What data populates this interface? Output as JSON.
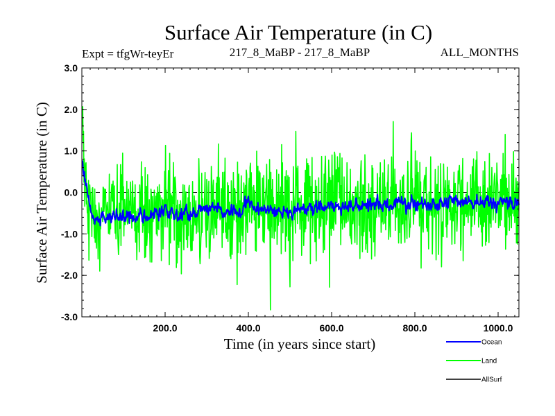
{
  "chart_data": {
    "type": "line",
    "title": "Surface Air Temperature (in C)",
    "experiment": "Expt = tfgWr-teyEr",
    "comparison": "217_8_MaBP - 217_8_MaBP",
    "months": "ALL_MONTHS",
    "xlabel": "Time (in years since start)",
    "ylabel": "Surface Air Temperature (in C)",
    "xlim": [
      0,
      1050
    ],
    "ylim": [
      -3.0,
      3.0
    ],
    "x_ticks": [
      200,
      400,
      600,
      800,
      1000
    ],
    "x_tick_labels": [
      "200.0",
      "400.0",
      "600.0",
      "800.0",
      "1000.0"
    ],
    "y_ticks": [
      3,
      2,
      1,
      0,
      -1,
      -2,
      -3
    ],
    "y_tick_labels": [
      "3.0",
      "2.0",
      "1.0",
      "0.0",
      "-1.0",
      "-2.0",
      "-3.0"
    ],
    "reference_line": 0.0,
    "legend_position": "bottom-right",
    "series": [
      {
        "name": "Ocean",
        "color": "#0000ff",
        "x": [
          0,
          5,
          10,
          15,
          20,
          30,
          50,
          100,
          150,
          200,
          250,
          300,
          350,
          400,
          450,
          500,
          550,
          600,
          650,
          700,
          750,
          800,
          850,
          900,
          950,
          1000,
          1050
        ],
        "values": [
          0.75,
          0.55,
          0.2,
          -0.2,
          -0.45,
          -0.7,
          -0.65,
          -0.55,
          -0.6,
          -0.45,
          -0.55,
          -0.4,
          -0.5,
          -0.35,
          -0.4,
          -0.45,
          -0.35,
          -0.35,
          -0.4,
          -0.3,
          -0.3,
          -0.25,
          -0.3,
          -0.2,
          -0.25,
          -0.2,
          -0.3
        ],
        "noise_amplitude": 0.45
      },
      {
        "name": "Land",
        "color": "#00ff00",
        "x": [
          0,
          5,
          10,
          15,
          20,
          30,
          50,
          100,
          150,
          200,
          250,
          300,
          350,
          400,
          450,
          500,
          550,
          600,
          650,
          700,
          750,
          800,
          850,
          900,
          950,
          1000,
          1050
        ],
        "values": [
          1.4,
          0.9,
          0.3,
          -0.2,
          -0.5,
          -0.65,
          -0.6,
          -0.55,
          -0.6,
          -0.45,
          -0.55,
          -0.4,
          -0.5,
          -0.35,
          -0.4,
          -0.45,
          -0.35,
          -0.35,
          -0.4,
          -0.3,
          -0.3,
          -0.25,
          -0.3,
          -0.2,
          -0.25,
          -0.2,
          -0.3
        ],
        "noise_amplitude": 1.6
      },
      {
        "name": "AllSurf",
        "color": "#000000",
        "x": [],
        "values": []
      }
    ]
  }
}
